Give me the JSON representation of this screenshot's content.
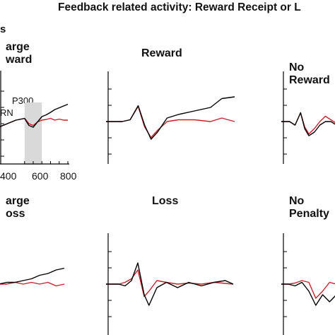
{
  "figure": {
    "title": "Feedback related activity: Reward Receipt or L",
    "panel_letter": "s"
  },
  "colors": {
    "trace_a": "#000000",
    "trace_b": "#c8202a",
    "window_fill": "#d9d9d9"
  },
  "chart_data": [
    {
      "type": "line",
      "title_lines": [
        "arge",
        "ward"
      ],
      "annotations": [
        "P300",
        "RN"
      ],
      "x_tick_labels": [
        "400",
        "600",
        "800"
      ],
      "xlim": [
        0,
        800
      ],
      "shaded_window": [
        300,
        500
      ],
      "series": [
        {
          "color": "#000000",
          "x": [
            0,
            100,
            200,
            300,
            350,
            400,
            450,
            500,
            550,
            600,
            650,
            700,
            750,
            800
          ],
          "y": [
            -1,
            0,
            1,
            1.5,
            -0.5,
            -1,
            0.5,
            2,
            2.5,
            3.2,
            4,
            4.5,
            5,
            5.5
          ]
        },
        {
          "color": "#c8202a",
          "x": [
            0,
            100,
            200,
            300,
            350,
            400,
            450,
            500,
            550,
            600,
            650,
            700,
            750,
            800
          ],
          "y": [
            -1,
            0,
            1,
            1.5,
            0,
            -0.5,
            0.5,
            1,
            1.2,
            1.5,
            1,
            1.3,
            1,
            1
          ]
        }
      ]
    },
    {
      "type": "line",
      "title_lines": [
        "Reward"
      ],
      "xlim": [
        0,
        800
      ],
      "series": [
        {
          "color": "#000000",
          "x": [
            0,
            100,
            150,
            200,
            240,
            280,
            320,
            380,
            450,
            550,
            650,
            720,
            800
          ],
          "y": [
            0,
            0,
            0.5,
            4.5,
            -1,
            -5,
            -3,
            1,
            2,
            3,
            4,
            6.5,
            7
          ]
        },
        {
          "color": "#c8202a",
          "x": [
            0,
            100,
            150,
            200,
            240,
            280,
            320,
            380,
            450,
            550,
            650,
            720,
            800
          ],
          "y": [
            0,
            0,
            0.5,
            4.3,
            -1.5,
            -4.5,
            -2.5,
            0,
            0.5,
            0.5,
            0,
            1,
            0
          ]
        }
      ]
    },
    {
      "type": "line",
      "title_lines": [
        "No",
        "Reward"
      ],
      "xlim": [
        0,
        400
      ],
      "series": [
        {
          "color": "#000000",
          "x": [
            0,
            60,
            100,
            140,
            170,
            200,
            240,
            280,
            320,
            360,
            400
          ],
          "y": [
            0,
            0,
            -1,
            2.5,
            -2,
            -4,
            -3,
            -1,
            0,
            0,
            -1
          ]
        },
        {
          "color": "#c8202a",
          "x": [
            0,
            60,
            100,
            140,
            170,
            200,
            240,
            280,
            320,
            360,
            400
          ],
          "y": [
            0,
            0,
            -1,
            2.5,
            -1.5,
            -3.5,
            -2,
            0,
            1.5,
            0.5,
            -0.5
          ]
        }
      ]
    },
    {
      "type": "line",
      "title_lines": [
        "arge",
        "oss"
      ],
      "xlim": [
        0,
        800
      ],
      "series": [
        {
          "color": "#000000",
          "x": [
            0,
            100,
            200,
            300,
            400,
            500,
            600,
            700,
            800
          ],
          "y": [
            0,
            0.5,
            0.5,
            1,
            1.5,
            2.5,
            3,
            4,
            4.5
          ]
        },
        {
          "color": "#c8202a",
          "x": [
            0,
            100,
            200,
            300,
            400,
            500,
            600,
            700,
            800
          ],
          "y": [
            0,
            0,
            0.5,
            0,
            0.5,
            0,
            0.5,
            -0.5,
            0
          ]
        }
      ]
    },
    {
      "type": "line",
      "title_lines": [
        "Loss"
      ],
      "xlim": [
        0,
        800
      ],
      "series": [
        {
          "color": "#000000",
          "x": [
            0,
            80,
            120,
            160,
            200,
            240,
            270,
            320,
            380,
            450,
            520,
            600,
            680,
            750,
            800
          ],
          "y": [
            0,
            0,
            -0.5,
            1,
            6,
            -3,
            -6,
            -1,
            0.5,
            -1,
            0.5,
            -0.5,
            0.5,
            1,
            0
          ]
        },
        {
          "color": "#c8202a",
          "x": [
            0,
            80,
            120,
            160,
            200,
            240,
            270,
            320,
            380,
            450,
            520,
            600,
            680,
            750,
            800
          ],
          "y": [
            0,
            0,
            0.5,
            1.5,
            4,
            -3.5,
            -2,
            1,
            0.5,
            0,
            0.3,
            0,
            0.5,
            0.2,
            0
          ]
        }
      ]
    },
    {
      "type": "line",
      "title_lines": [
        "No",
        "Penalty"
      ],
      "xlim": [
        0,
        400
      ],
      "series": [
        {
          "color": "#000000",
          "x": [
            0,
            50,
            100,
            150,
            200,
            250,
            300,
            350,
            400
          ],
          "y": [
            0,
            0,
            -0.5,
            0.5,
            -2,
            -6,
            -3,
            -5,
            -3
          ]
        },
        {
          "color": "#c8202a",
          "x": [
            0,
            50,
            100,
            150,
            200,
            250,
            300,
            350,
            400
          ],
          "y": [
            0,
            0,
            0.3,
            1,
            0.5,
            -4,
            -2,
            0.5,
            0
          ]
        }
      ]
    }
  ]
}
